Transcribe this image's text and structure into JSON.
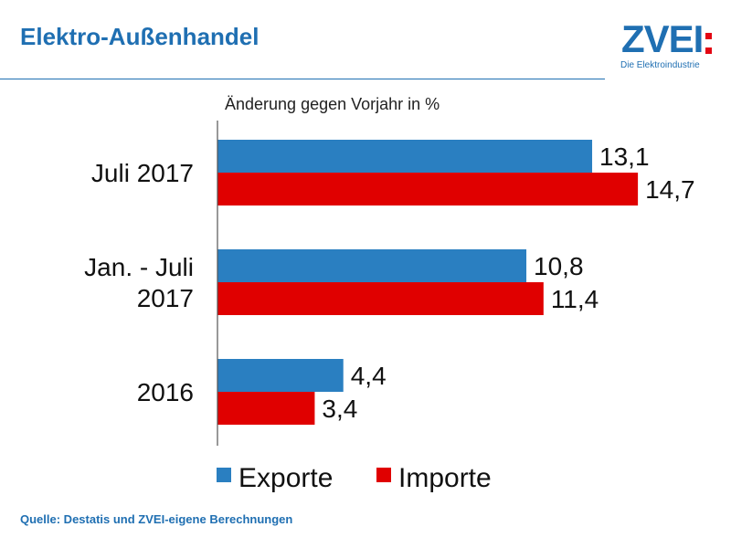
{
  "header": {
    "title": "Elektro-Außenhandel",
    "logo_text": "ZVEI",
    "logo_tagline": "Die Elektroindustrie"
  },
  "footer": {
    "source": "Quelle: Destatis und ZVEI-eigene Berechnungen"
  },
  "colors": {
    "exporte": "#2a7fc1",
    "importe": "#e00000",
    "brand": "#1f6fb2"
  },
  "chart_data": {
    "type": "bar",
    "orientation": "horizontal",
    "title": "",
    "subtitle": "Änderung gegen Vorjahr in %",
    "categories": [
      "Juli 2017",
      "Jan. - Juli 2017",
      "2016"
    ],
    "category_lines": [
      [
        "Juli 2017"
      ],
      [
        "Jan. - Juli",
        "2017"
      ],
      [
        "2016"
      ]
    ],
    "series": [
      {
        "name": "Exporte",
        "values": [
          13.1,
          10.8,
          4.4
        ],
        "labels": [
          "13,1",
          "10,8",
          "4,4"
        ]
      },
      {
        "name": "Importe",
        "values": [
          14.7,
          11.4,
          3.4
        ],
        "labels": [
          "14,7",
          "11,4",
          "3,4"
        ]
      }
    ],
    "xlim": [
      0,
      20
    ],
    "grid": false,
    "legend": "bottom"
  }
}
